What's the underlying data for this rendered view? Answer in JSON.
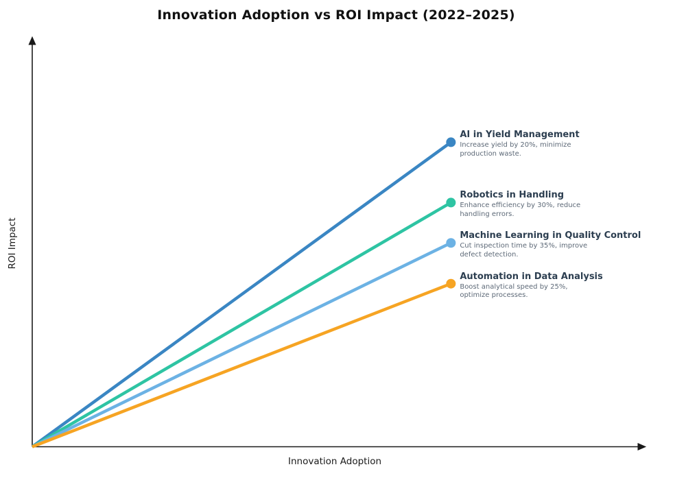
{
  "title": "Innovation Adoption vs ROI Impact (2022–2025)",
  "axes": {
    "x_label": "Innovation Adoption",
    "y_label": "ROI Impact",
    "axis_color": "#1a1a1a"
  },
  "chart_data": {
    "type": "line",
    "title": "Innovation Adoption vs ROI Impact (2022–2025)",
    "xlabel": "Innovation Adoption",
    "ylabel": "ROI Impact",
    "xlim": [
      0,
      100
    ],
    "ylim": [
      0,
      100
    ],
    "grid": false,
    "legend_position": "none",
    "tick_labels": "none",
    "annotation_title_color": "#2c3e50",
    "annotation_text_color": "#5d6977",
    "series": [
      {
        "name": "AI in Yield Management",
        "description_lines": [
          "Increase yield by 20%, minimize",
          "production waste."
        ],
        "color": "#3a86c3",
        "x": [
          0,
          68.5
        ],
        "y": [
          0,
          74.7
        ]
      },
      {
        "name": "Robotics in Handling",
        "description_lines": [
          "Enhance efficiency by 30%, reduce",
          "handling errors."
        ],
        "color": "#2ec4a3",
        "x": [
          0,
          68.5
        ],
        "y": [
          0,
          59.9
        ]
      },
      {
        "name": "Machine Learning in Quality Control",
        "description_lines": [
          "Cut inspection time by 35%, improve",
          "defect detection."
        ],
        "color": "#6cb2e4",
        "x": [
          0,
          68.5
        ],
        "y": [
          0,
          50.0
        ]
      },
      {
        "name": "Automation in Data Analysis",
        "description_lines": [
          "Boost analytical speed by 25%,",
          "optimize processes."
        ],
        "color": "#f6a423",
        "x": [
          0,
          68.5
        ],
        "y": [
          0,
          40.0
        ]
      }
    ]
  }
}
